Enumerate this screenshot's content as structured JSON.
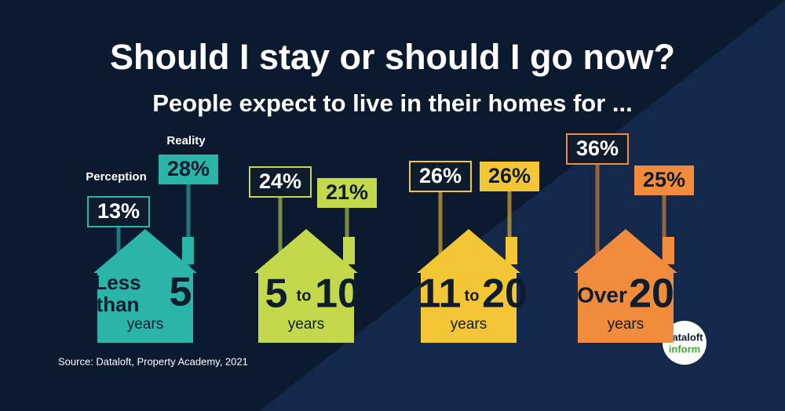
{
  "title": "Should I stay or should I go now?",
  "subtitle": "People expect to live in their homes for ...",
  "legend": {
    "perception": "Perception",
    "reality": "Reality"
  },
  "groups": [
    {
      "perception": "13%",
      "reality": "28%",
      "label": [
        "Less",
        "than",
        "5",
        "years"
      ]
    },
    {
      "perception": "24%",
      "reality": "21%",
      "label": [
        "5",
        "to",
        "10",
        "years"
      ]
    },
    {
      "perception": "26%",
      "reality": "26%",
      "label": [
        "11",
        "to",
        "20",
        "years"
      ]
    },
    {
      "perception": "36%",
      "reality": "25%",
      "label": [
        "Over",
        "20",
        "years"
      ]
    }
  ],
  "source": "Source: Dataloft, Property Academy, 2021",
  "logo": [
    "dataloft",
    "inform"
  ]
}
